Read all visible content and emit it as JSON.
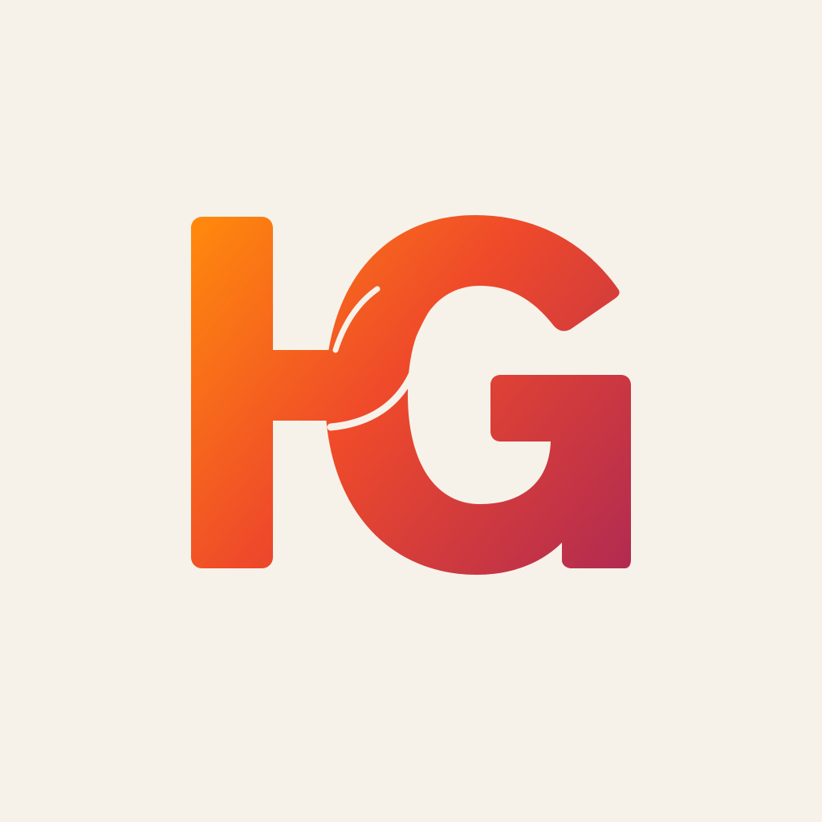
{
  "logo": {
    "monogram": "HG",
    "name": "hg-monogram-logo"
  },
  "colors": {
    "background": "#f6f2ea",
    "gradient_start": "#ff8a0c",
    "gradient_mid": "#ef4a2a",
    "gradient_end": "#b02a52",
    "separator": "#f6f2ea"
  }
}
